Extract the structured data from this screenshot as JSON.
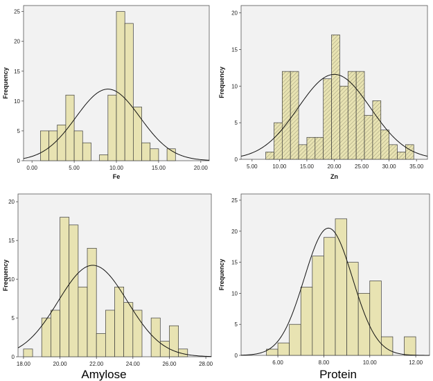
{
  "chart_data": [
    {
      "type": "bar",
      "subtype": "histogram",
      "xlabel": "Fe",
      "ylabel": "Frequency",
      "xlim": [
        -1,
        21
      ],
      "ylim": [
        0,
        26
      ],
      "xticks": [
        "0.00",
        "5.00",
        "10.00",
        "15.00",
        "20.00"
      ],
      "xtick_values": [
        0,
        5,
        10,
        15,
        20
      ],
      "yticks": [
        "0",
        "5",
        "10",
        "15",
        "20",
        "25"
      ],
      "ytick_values": [
        0,
        5,
        10,
        15,
        20,
        25
      ],
      "bin_width": 1,
      "bins": [
        {
          "x0": 1,
          "x1": 2,
          "count": 5
        },
        {
          "x0": 2,
          "x1": 3,
          "count": 5
        },
        {
          "x0": 3,
          "x1": 4,
          "count": 6
        },
        {
          "x0": 4,
          "x1": 5,
          "count": 11
        },
        {
          "x0": 5,
          "x1": 6,
          "count": 5
        },
        {
          "x0": 6,
          "x1": 7,
          "count": 3
        },
        {
          "x0": 8,
          "x1": 9,
          "count": 1
        },
        {
          "x0": 9,
          "x1": 10,
          "count": 11
        },
        {
          "x0": 10,
          "x1": 11,
          "count": 25
        },
        {
          "x0": 11,
          "x1": 12,
          "count": 23
        },
        {
          "x0": 12,
          "x1": 13,
          "count": 9
        },
        {
          "x0": 13,
          "x1": 14,
          "count": 3
        },
        {
          "x0": 14,
          "x1": 15,
          "count": 2
        },
        {
          "x0": 16,
          "x1": 17,
          "count": 2
        }
      ],
      "normal_curve": {
        "mean": 9,
        "sd": 3.8,
        "peak": 12
      },
      "fill_color": "#e8e3b2",
      "hatched": false,
      "plot_bg": "#f2f2f2"
    },
    {
      "type": "bar",
      "subtype": "histogram",
      "xlabel": "Zn",
      "ylabel": "Frequency",
      "xlim": [
        3,
        37
      ],
      "ylim": [
        0,
        21
      ],
      "xticks": [
        "5.00",
        "10.00",
        "15.00",
        "20.00",
        "25.00",
        "30.00",
        "35.00"
      ],
      "xtick_values": [
        5,
        10,
        15,
        20,
        25,
        30,
        35
      ],
      "yticks": [
        "0",
        "5",
        "10",
        "15",
        "20"
      ],
      "ytick_values": [
        0,
        5,
        10,
        15,
        20
      ],
      "bin_width": 1.5,
      "bins": [
        {
          "x0": 7.5,
          "x1": 9,
          "count": 1
        },
        {
          "x0": 9,
          "x1": 10.5,
          "count": 5
        },
        {
          "x0": 10.5,
          "x1": 12,
          "count": 12
        },
        {
          "x0": 12,
          "x1": 13.5,
          "count": 12
        },
        {
          "x0": 13.5,
          "x1": 15,
          "count": 2
        },
        {
          "x0": 15,
          "x1": 16.5,
          "count": 3
        },
        {
          "x0": 16.5,
          "x1": 18,
          "count": 3
        },
        {
          "x0": 18,
          "x1": 19.5,
          "count": 11
        },
        {
          "x0": 19.5,
          "x1": 21,
          "count": 17
        },
        {
          "x0": 21,
          "x1": 22.5,
          "count": 10
        },
        {
          "x0": 22.5,
          "x1": 24,
          "count": 12
        },
        {
          "x0": 24,
          "x1": 25.5,
          "count": 12
        },
        {
          "x0": 25.5,
          "x1": 27,
          "count": 6
        },
        {
          "x0": 27,
          "x1": 28.5,
          "count": 8
        },
        {
          "x0": 28.5,
          "x1": 30,
          "count": 4
        },
        {
          "x0": 30,
          "x1": 31.5,
          "count": 2
        },
        {
          "x0": 31.5,
          "x1": 33,
          "count": 1
        },
        {
          "x0": 33,
          "x1": 34.5,
          "count": 2
        }
      ],
      "normal_curve": {
        "mean": 20,
        "sd": 6.6,
        "peak": 11.6
      },
      "fill_color": "#e8e3b2",
      "hatched": true,
      "plot_bg": "#f2f2f2"
    },
    {
      "type": "bar",
      "subtype": "histogram",
      "xlabel": "Amylose",
      "ylabel": "Frequency",
      "xlim": [
        17.7,
        28.3
      ],
      "ylim": [
        0,
        21
      ],
      "xticks": [
        "18.00",
        "20.00",
        "22.00",
        "24.00",
        "26.00",
        "28.00"
      ],
      "xtick_values": [
        18,
        20,
        22,
        24,
        26,
        28
      ],
      "yticks": [
        "0",
        "5",
        "10",
        "15",
        "20"
      ],
      "ytick_values": [
        0,
        5,
        10,
        15,
        20
      ],
      "bin_width": 0.5,
      "bins": [
        {
          "x0": 18,
          "x1": 18.5,
          "count": 1
        },
        {
          "x0": 19,
          "x1": 19.5,
          "count": 5
        },
        {
          "x0": 19.5,
          "x1": 20,
          "count": 6
        },
        {
          "x0": 20,
          "x1": 20.5,
          "count": 18
        },
        {
          "x0": 20.5,
          "x1": 21,
          "count": 17
        },
        {
          "x0": 21,
          "x1": 21.5,
          "count": 9
        },
        {
          "x0": 21.5,
          "x1": 22,
          "count": 14
        },
        {
          "x0": 22,
          "x1": 22.5,
          "count": 3
        },
        {
          "x0": 22.5,
          "x1": 23,
          "count": 6
        },
        {
          "x0": 23,
          "x1": 23.5,
          "count": 9
        },
        {
          "x0": 23.5,
          "x1": 24,
          "count": 7
        },
        {
          "x0": 24,
          "x1": 24.5,
          "count": 6
        },
        {
          "x0": 25,
          "x1": 25.5,
          "count": 5
        },
        {
          "x0": 25.5,
          "x1": 26,
          "count": 2
        },
        {
          "x0": 26,
          "x1": 26.5,
          "count": 4
        },
        {
          "x0": 26.5,
          "x1": 27,
          "count": 1
        }
      ],
      "normal_curve": {
        "mean": 21.8,
        "sd": 1.9,
        "peak": 11.8
      },
      "fill_color": "#e8e3b2",
      "hatched": false,
      "plot_bg": "#f2f2f2"
    },
    {
      "type": "bar",
      "subtype": "histogram",
      "xlabel": "Protein",
      "ylabel": "Frequency",
      "xlim": [
        4.4,
        12.6
      ],
      "ylim": [
        0,
        26
      ],
      "xticks": [
        "6.00",
        "8.00",
        "10.00",
        "12.00"
      ],
      "xtick_values": [
        6,
        8,
        10,
        12
      ],
      "yticks": [
        "0",
        "5",
        "10",
        "15",
        "20",
        "25"
      ],
      "ytick_values": [
        0,
        5,
        10,
        15,
        20,
        25
      ],
      "bin_width": 0.5,
      "bins": [
        {
          "x0": 5.5,
          "x1": 6,
          "count": 1
        },
        {
          "x0": 6,
          "x1": 6.5,
          "count": 2
        },
        {
          "x0": 6.5,
          "x1": 7,
          "count": 5
        },
        {
          "x0": 7,
          "x1": 7.5,
          "count": 11
        },
        {
          "x0": 7.5,
          "x1": 8,
          "count": 16
        },
        {
          "x0": 8,
          "x1": 8.5,
          "count": 19
        },
        {
          "x0": 8.5,
          "x1": 9,
          "count": 22
        },
        {
          "x0": 9,
          "x1": 9.5,
          "count": 15
        },
        {
          "x0": 9.5,
          "x1": 10,
          "count": 10
        },
        {
          "x0": 10,
          "x1": 10.5,
          "count": 12
        },
        {
          "x0": 10.5,
          "x1": 11,
          "count": 3
        },
        {
          "x0": 11.5,
          "x1": 12,
          "count": 3
        }
      ],
      "normal_curve": {
        "mean": 8.2,
        "sd": 1.05,
        "peak": 20.5
      },
      "fill_color": "#e8e3b2",
      "hatched": false,
      "plot_bg": "#f2f2f2"
    }
  ]
}
